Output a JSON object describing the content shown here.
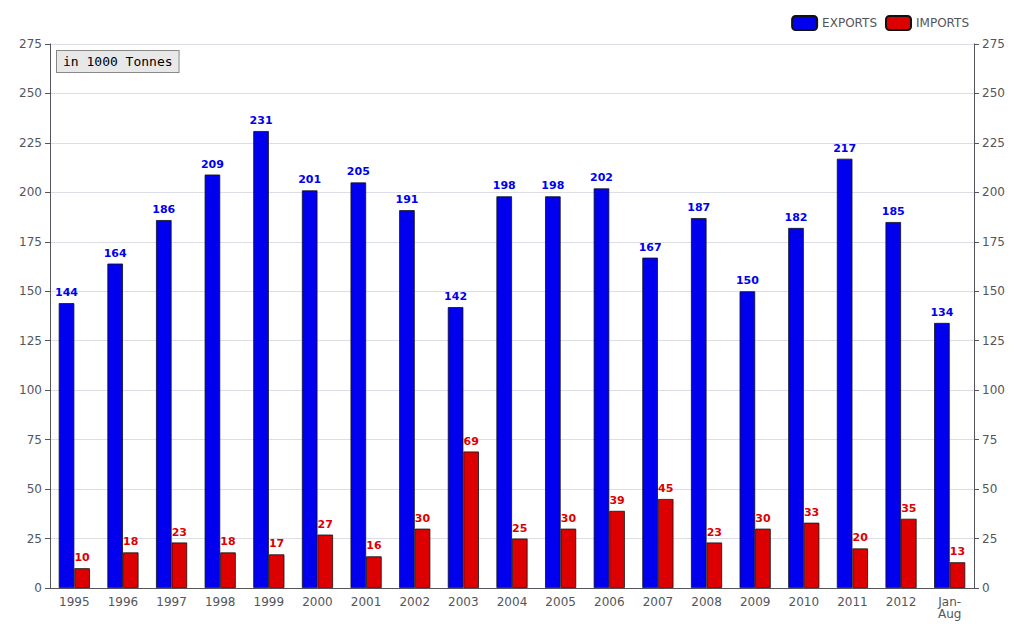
{
  "chart_data": {
    "type": "bar",
    "categories": [
      "1995",
      "1996",
      "1997",
      "1998",
      "1999",
      "2000",
      "2001",
      "2002",
      "2003",
      "2004",
      "2005",
      "2006",
      "2007",
      "2008",
      "2009",
      "2010",
      "2011",
      "2012",
      "Jan-\nAug"
    ],
    "series": [
      {
        "name": "EXPORTS",
        "color": "#0000EE",
        "values": [
          144,
          164,
          186,
          209,
          231,
          201,
          205,
          191,
          142,
          198,
          198,
          202,
          167,
          187,
          150,
          182,
          217,
          185,
          134
        ]
      },
      {
        "name": "IMPORTS",
        "color": "#DD0000",
        "values": [
          10,
          18,
          23,
          18,
          17,
          27,
          16,
          30,
          69,
          25,
          30,
          39,
          45,
          23,
          30,
          33,
          20,
          35,
          13
        ]
      }
    ],
    "annotation": "in 1000 Tonnes",
    "ylim": [
      0,
      275
    ],
    "yticks": [
      0,
      25,
      50,
      75,
      100,
      125,
      150,
      175,
      200,
      225,
      250,
      275
    ],
    "y2lim": [
      0,
      275
    ],
    "y2ticks": [
      0,
      25,
      50,
      75,
      100,
      125,
      150,
      175,
      200,
      225,
      250,
      275
    ],
    "grid": true,
    "legend": "upper right",
    "data_labels": true
  }
}
